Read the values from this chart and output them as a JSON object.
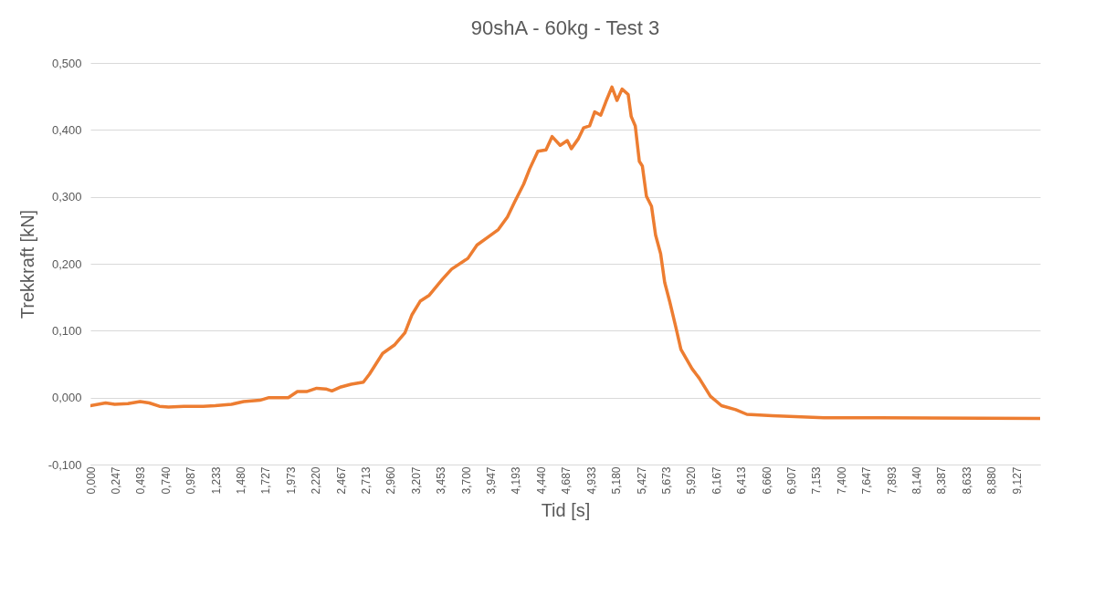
{
  "chart_data": {
    "type": "line",
    "title": "90shA - 60kg - Test 3",
    "xlabel": "Tid [s]",
    "ylabel": "Trekkraft [kN]",
    "xlim": [
      0,
      9.36
    ],
    "ylim": [
      -0.1,
      0.5
    ],
    "xticks": [
      {
        "value": 0,
        "label": "0,000"
      },
      {
        "value": 0.247,
        "label": "0,247"
      },
      {
        "value": 0.493,
        "label": "0,493"
      },
      {
        "value": 0.74,
        "label": "0,740"
      },
      {
        "value": 0.987,
        "label": "0,987"
      },
      {
        "value": 1.233,
        "label": "1,233"
      },
      {
        "value": 1.48,
        "label": "1,480"
      },
      {
        "value": 1.727,
        "label": "1,727"
      },
      {
        "value": 1.973,
        "label": "1,973"
      },
      {
        "value": 2.22,
        "label": "2,220"
      },
      {
        "value": 2.467,
        "label": "2,467"
      },
      {
        "value": 2.713,
        "label": "2,713"
      },
      {
        "value": 2.96,
        "label": "2,960"
      },
      {
        "value": 3.207,
        "label": "3,207"
      },
      {
        "value": 3.453,
        "label": "3,453"
      },
      {
        "value": 3.7,
        "label": "3,700"
      },
      {
        "value": 3.947,
        "label": "3,947"
      },
      {
        "value": 4.193,
        "label": "4,193"
      },
      {
        "value": 4.44,
        "label": "4,440"
      },
      {
        "value": 4.687,
        "label": "4,687"
      },
      {
        "value": 4.933,
        "label": "4,933"
      },
      {
        "value": 5.18,
        "label": "5,180"
      },
      {
        "value": 5.427,
        "label": "5,427"
      },
      {
        "value": 5.673,
        "label": "5,673"
      },
      {
        "value": 5.92,
        "label": "5,920"
      },
      {
        "value": 6.167,
        "label": "6,167"
      },
      {
        "value": 6.413,
        "label": "6,413"
      },
      {
        "value": 6.66,
        "label": "6,660"
      },
      {
        "value": 6.907,
        "label": "6,907"
      },
      {
        "value": 7.153,
        "label": "7,153"
      },
      {
        "value": 7.4,
        "label": "7,400"
      },
      {
        "value": 7.647,
        "label": "7,647"
      },
      {
        "value": 7.893,
        "label": "7,893"
      },
      {
        "value": 8.14,
        "label": "8,140"
      },
      {
        "value": 8.387,
        "label": "8,387"
      },
      {
        "value": 8.633,
        "label": "8,633"
      },
      {
        "value": 8.88,
        "label": "8,880"
      },
      {
        "value": 9.127,
        "label": "9,127"
      }
    ],
    "yticks": [
      {
        "value": -0.1,
        "label": "-0,100"
      },
      {
        "value": 0,
        "label": "0,000"
      },
      {
        "value": 0.1,
        "label": "0,100"
      },
      {
        "value": 0.2,
        "label": "0,200"
      },
      {
        "value": 0.3,
        "label": "0,300"
      },
      {
        "value": 0.4,
        "label": "0,400"
      },
      {
        "value": 0.5,
        "label": "0,500"
      }
    ],
    "grid": "y",
    "marker": "none",
    "line_style": "solid",
    "x": [
      0,
      0.15,
      0.24,
      0.37,
      0.49,
      0.58,
      0.68,
      0.77,
      0.92,
      1.11,
      1.23,
      1.39,
      1.51,
      1.67,
      1.76,
      1.95,
      2.04,
      2.13,
      2.23,
      2.32,
      2.38,
      2.47,
      2.57,
      2.69,
      2.75,
      2.88,
      3.0,
      3.1,
      3.17,
      3.25,
      3.34,
      3.47,
      3.56,
      3.72,
      3.81,
      3.93,
      4.02,
      4.11,
      4.18,
      4.27,
      4.33,
      4.41,
      4.49,
      4.55,
      4.63,
      4.7,
      4.74,
      4.81,
      4.86,
      4.92,
      4.97,
      5.03,
      5.08,
      5.14,
      5.19,
      5.24,
      5.3,
      5.33,
      5.37,
      5.41,
      5.44,
      5.48,
      5.53,
      5.57,
      5.62,
      5.66,
      5.71,
      5.77,
      5.82,
      5.93,
      6.0,
      6.11,
      6.22,
      6.36,
      6.47,
      6.72,
      7.23,
      7.77,
      9.36
    ],
    "series": [
      {
        "color": "#ed7d31",
        "values": [
          -0.012,
          -0.008,
          -0.01,
          -0.009,
          -0.006,
          -0.008,
          -0.013,
          -0.014,
          -0.013,
          -0.013,
          -0.012,
          -0.01,
          -0.006,
          -0.004,
          0.0,
          0.0,
          0.009,
          0.009,
          0.014,
          0.013,
          0.01,
          0.016,
          0.02,
          0.023,
          0.035,
          0.066,
          0.079,
          0.097,
          0.124,
          0.144,
          0.153,
          0.177,
          0.192,
          0.208,
          0.228,
          0.241,
          0.251,
          0.27,
          0.292,
          0.319,
          0.342,
          0.368,
          0.37,
          0.39,
          0.377,
          0.384,
          0.372,
          0.387,
          0.403,
          0.406,
          0.427,
          0.422,
          0.442,
          0.464,
          0.444,
          0.461,
          0.453,
          0.42,
          0.406,
          0.353,
          0.346,
          0.301,
          0.286,
          0.243,
          0.215,
          0.172,
          0.143,
          0.105,
          0.072,
          0.043,
          0.029,
          0.002,
          -0.012,
          -0.018,
          -0.025,
          -0.027,
          -0.03,
          -0.03,
          -0.031
        ]
      }
    ]
  }
}
